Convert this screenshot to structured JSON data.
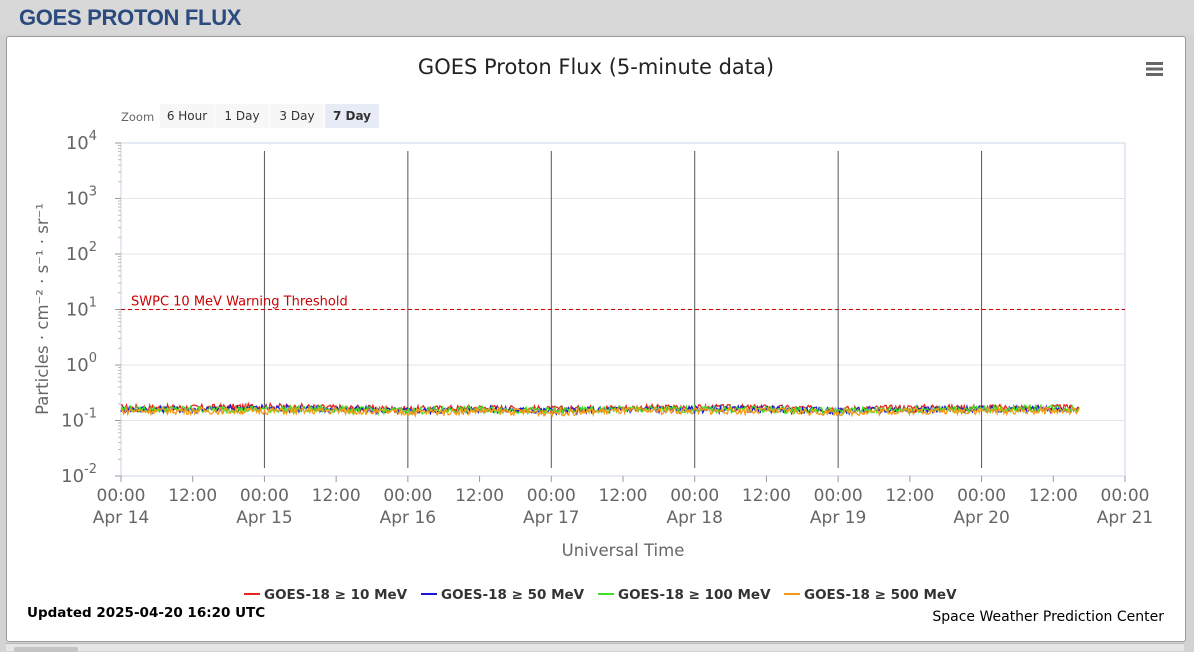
{
  "page": {
    "title": "GOES PROTON FLUX"
  },
  "zoom": {
    "label": "Zoom",
    "buttons": [
      {
        "label": "6 Hour",
        "selected": false
      },
      {
        "label": "1 Day",
        "selected": false
      },
      {
        "label": "3 Day",
        "selected": false
      },
      {
        "label": "7 Day",
        "selected": true
      }
    ]
  },
  "menu_icon": "hamburger-menu-icon",
  "updated_text": "Updated 2025-04-20 16:20 UTC",
  "credit_text": "Space Weather Prediction Center",
  "colors": {
    "title": "#2b4a7e",
    "threshold": "#cc0000",
    "zoom_selected": "#e6ebf5",
    "zoom_unselected": "#f7f7f7"
  },
  "chart_data": {
    "type": "line",
    "title": "GOES Proton Flux (5-minute data)",
    "xlabel": "Universal Time",
    "ylabel": "Particles · cm⁻² · s⁻¹ · sr⁻¹",
    "yscale": "log",
    "ylim": [
      0.01,
      10000
    ],
    "y_ticks": [
      {
        "base": "10",
        "exp": "-2",
        "value": 0.01
      },
      {
        "base": "10",
        "exp": "-1",
        "value": 0.1
      },
      {
        "base": "10",
        "exp": "0",
        "value": 1
      },
      {
        "base": "10",
        "exp": "1",
        "value": 10
      },
      {
        "base": "10",
        "exp": "2",
        "value": 100
      },
      {
        "base": "10",
        "exp": "3",
        "value": 1000
      },
      {
        "base": "10",
        "exp": "4",
        "value": 10000
      }
    ],
    "xlim": [
      "2025-04-14 00:00",
      "2025-04-21 00:00"
    ],
    "x_ticks": [
      {
        "time": "00:00",
        "date": "Apr 14"
      },
      {
        "time": "12:00",
        "date": ""
      },
      {
        "time": "00:00",
        "date": "Apr 15"
      },
      {
        "time": "12:00",
        "date": ""
      },
      {
        "time": "00:00",
        "date": "Apr 16"
      },
      {
        "time": "12:00",
        "date": ""
      },
      {
        "time": "00:00",
        "date": "Apr 17"
      },
      {
        "time": "12:00",
        "date": ""
      },
      {
        "time": "00:00",
        "date": "Apr 18"
      },
      {
        "time": "12:00",
        "date": ""
      },
      {
        "time": "00:00",
        "date": "Apr 19"
      },
      {
        "time": "12:00",
        "date": ""
      },
      {
        "time": "00:00",
        "date": "Apr 20"
      },
      {
        "time": "12:00",
        "date": ""
      },
      {
        "time": "00:00",
        "date": "Apr 21"
      }
    ],
    "threshold": {
      "label": "SWPC 10 MeV Warning Threshold",
      "value": 10,
      "color": "#cc0000"
    },
    "grid": true,
    "legend_position": "bottom",
    "data_end": "2025-04-20 16:20",
    "series": [
      {
        "name": "GOES-18 ≥ 10 MeV",
        "color": "#e8231b",
        "x": [
          "2025-04-14 00:00",
          "2025-04-14 12:00",
          "2025-04-15 00:00",
          "2025-04-15 12:00",
          "2025-04-16 00:00",
          "2025-04-16 12:00",
          "2025-04-17 00:00",
          "2025-04-17 12:00",
          "2025-04-18 00:00",
          "2025-04-18 12:00",
          "2025-04-19 00:00",
          "2025-04-19 12:00",
          "2025-04-20 00:00",
          "2025-04-20 12:00",
          "2025-04-20 16:20"
        ],
        "values": [
          0.17,
          0.17,
          0.18,
          0.17,
          0.16,
          0.17,
          0.16,
          0.17,
          0.17,
          0.17,
          0.16,
          0.17,
          0.17,
          0.17,
          0.17
        ]
      },
      {
        "name": "GOES-18 ≥ 50 MeV",
        "color": "#1a1ad6",
        "x": [
          "2025-04-14 00:00",
          "2025-04-14 12:00",
          "2025-04-15 00:00",
          "2025-04-15 12:00",
          "2025-04-16 00:00",
          "2025-04-16 12:00",
          "2025-04-17 00:00",
          "2025-04-17 12:00",
          "2025-04-18 00:00",
          "2025-04-18 12:00",
          "2025-04-19 00:00",
          "2025-04-19 12:00",
          "2025-04-20 00:00",
          "2025-04-20 12:00",
          "2025-04-20 16:20"
        ],
        "values": [
          0.16,
          0.16,
          0.17,
          0.16,
          0.15,
          0.16,
          0.15,
          0.16,
          0.16,
          0.16,
          0.15,
          0.16,
          0.16,
          0.16,
          0.16
        ]
      },
      {
        "name": "GOES-18 ≥ 100 MeV",
        "color": "#3ee02a",
        "x": [
          "2025-04-14 00:00",
          "2025-04-14 12:00",
          "2025-04-15 00:00",
          "2025-04-15 12:00",
          "2025-04-16 00:00",
          "2025-04-16 12:00",
          "2025-04-17 00:00",
          "2025-04-17 12:00",
          "2025-04-18 00:00",
          "2025-04-18 12:00",
          "2025-04-19 00:00",
          "2025-04-19 12:00",
          "2025-04-20 00:00",
          "2025-04-20 12:00",
          "2025-04-20 16:20"
        ],
        "values": [
          0.16,
          0.16,
          0.16,
          0.16,
          0.15,
          0.16,
          0.15,
          0.16,
          0.16,
          0.16,
          0.15,
          0.16,
          0.16,
          0.17,
          0.16
        ]
      },
      {
        "name": "GOES-18 ≥ 500 MeV",
        "color": "#f59b16",
        "x": [
          "2025-04-14 00:00",
          "2025-04-14 12:00",
          "2025-04-15 00:00",
          "2025-04-15 12:00",
          "2025-04-16 00:00",
          "2025-04-16 12:00",
          "2025-04-17 00:00",
          "2025-04-17 12:00",
          "2025-04-18 00:00",
          "2025-04-18 12:00",
          "2025-04-19 00:00",
          "2025-04-19 12:00",
          "2025-04-20 00:00",
          "2025-04-20 12:00",
          "2025-04-20 16:20"
        ],
        "values": [
          0.15,
          0.15,
          0.15,
          0.15,
          0.14,
          0.15,
          0.14,
          0.15,
          0.15,
          0.15,
          0.14,
          0.15,
          0.15,
          0.15,
          0.15
        ]
      }
    ]
  }
}
